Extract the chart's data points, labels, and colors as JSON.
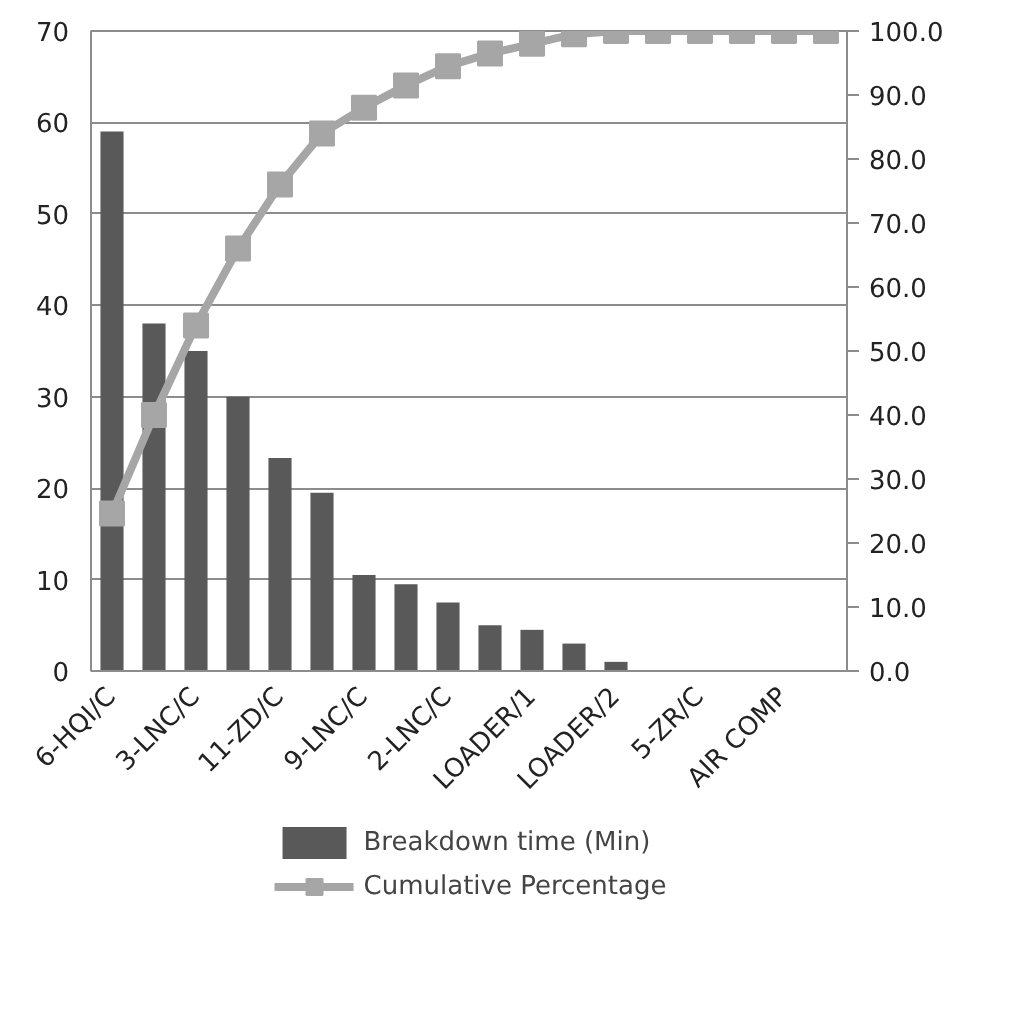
{
  "chart_data": {
    "type": "bar",
    "categories": [
      "6-HQI/C",
      null,
      "3-LNC/C",
      null,
      "11-ZD/C",
      null,
      "9-LNC/C",
      null,
      "2-LNC/C",
      null,
      "LOADER/1",
      null,
      "LOADER/2",
      null,
      "5-ZR/C",
      null,
      "AIR COMP",
      null
    ],
    "series": [
      {
        "name": "Breakdown time (Min)",
        "color": "#595959",
        "values": [
          59,
          38,
          35,
          30,
          23.3,
          19.5,
          10.5,
          9.5,
          7.5,
          5,
          4.5,
          3,
          1,
          0,
          0,
          0,
          0,
          0
        ]
      },
      {
        "name": "Cumulative Percentage",
        "type": "line",
        "axis": "y2",
        "color": "#a6a6a6",
        "marker": "square",
        "values": [
          24.6,
          40,
          54,
          66,
          76,
          84,
          88,
          91.5,
          94.5,
          96.5,
          98,
          99.5,
          100,
          100,
          100,
          100,
          100,
          100
        ]
      }
    ],
    "ylim": [
      0,
      70
    ],
    "yticks": [
      0,
      10,
      20,
      30,
      40,
      50,
      60,
      70
    ],
    "y2lim": [
      0,
      100
    ],
    "y2ticks": [
      {
        "value": 0,
        "label": "0.0"
      },
      {
        "value": 10,
        "label": "10.0"
      },
      {
        "value": 20,
        "label": "20.0"
      },
      {
        "value": 30,
        "label": "30.0"
      },
      {
        "value": 40,
        "label": "40.0"
      },
      {
        "value": 50,
        "label": "50.0"
      },
      {
        "value": 60,
        "label": "60.0"
      },
      {
        "value": 70,
        "label": "70.0"
      },
      {
        "value": 80,
        "label": "80.0"
      },
      {
        "value": 90,
        "label": "90.0"
      },
      {
        "value": 100,
        "label": "100.0"
      }
    ],
    "grid": "y",
    "legend": "bottom"
  }
}
